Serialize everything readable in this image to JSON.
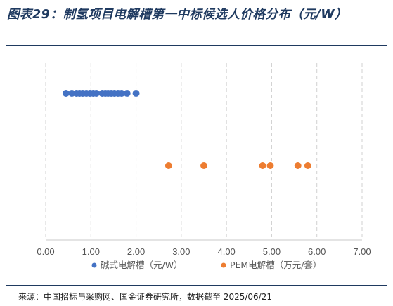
{
  "title": "图表29：制氢项目电解槽第一中标候选人价格分布（元/W）",
  "source": "来源：中国招标与采购网、国金证券研究所，数据截至 2025/06/21",
  "chart_data": {
    "type": "scatter",
    "title": "图表29：制氢项目电解槽第一中标候选人价格分布（元/W）",
    "xlim": [
      0,
      7
    ],
    "x_ticks": [
      "0.00",
      "1.00",
      "2.00",
      "3.00",
      "4.00",
      "5.00",
      "6.00",
      "7.00"
    ],
    "grid": "vertical dashed",
    "legend_position": "bottom",
    "series": [
      {
        "name": "碱式电解槽（元/W）",
        "color": "#4472C4",
        "row": 1,
        "x": [
          0.45,
          0.58,
          0.68,
          0.75,
          0.82,
          0.9,
          0.98,
          1.05,
          1.12,
          1.25,
          1.32,
          1.38,
          1.45,
          1.52,
          1.6,
          1.68,
          1.8,
          2.0
        ]
      },
      {
        "name": "PEM电解槽（万元/套）",
        "color": "#ED7D31",
        "row": 2,
        "x": [
          2.72,
          3.5,
          4.8,
          4.97,
          5.58,
          5.8
        ]
      }
    ]
  }
}
